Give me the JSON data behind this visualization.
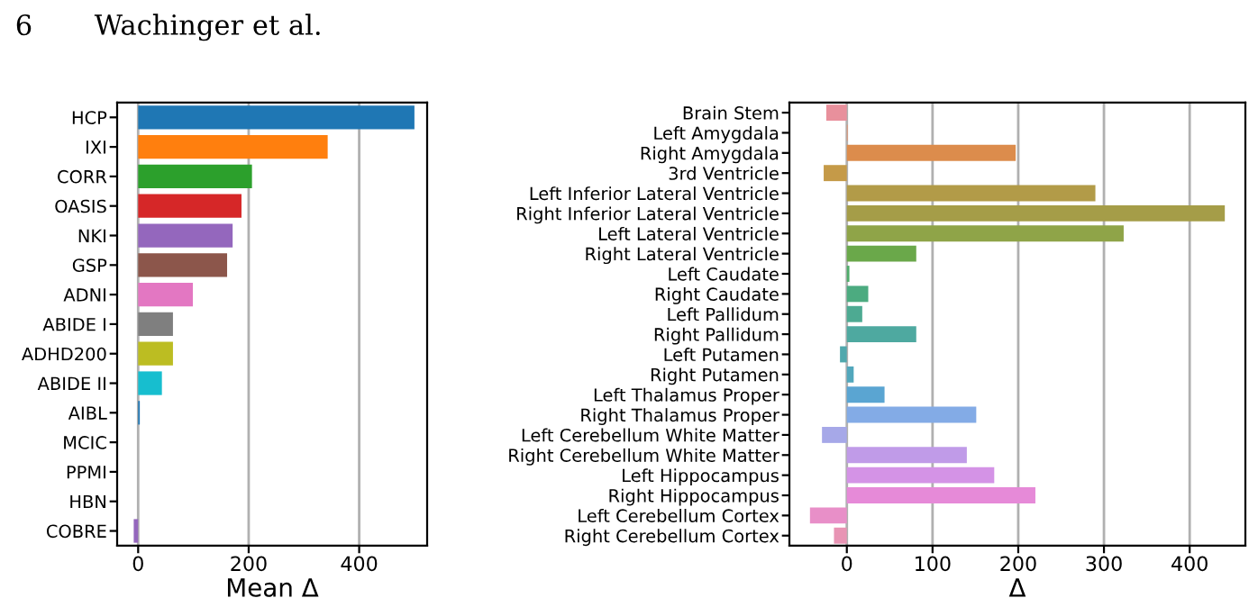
{
  "chart_data": [
    {
      "type": "bar",
      "orientation": "horizontal",
      "xlabel": "Mean Δ",
      "annotations": [
        "6",
        "Wachinger et al."
      ],
      "categories": [
        "HCP",
        "IXI",
        "CORR",
        "OASIS",
        "NKI",
        "GSP",
        "ADNI",
        "ABIDE I",
        "ADHD200",
        "ABIDE II",
        "AIBL",
        "MCIC",
        "PPMI",
        "HBN",
        "COBRE"
      ],
      "values": [
        500,
        343,
        206,
        187,
        171,
        161,
        99,
        63,
        63,
        43,
        3,
        0,
        0,
        0,
        -8
      ],
      "colors": [
        "#1f77b4",
        "#ff7f0e",
        "#2ca02c",
        "#d62728",
        "#9467bd",
        "#8c564b",
        "#e377c2",
        "#7f7f7f",
        "#bcbd22",
        "#17becf",
        "#1f77b4",
        "#ff7f0e",
        "#2ca02c",
        "#d62728",
        "#9467bd"
      ],
      "xlim": [
        -38,
        523
      ],
      "xticks": [
        0,
        200,
        400
      ],
      "grid": "x"
    },
    {
      "type": "bar",
      "orientation": "horizontal",
      "xlabel": "Δ",
      "categories": [
        "Brain Stem",
        "Left Amygdala",
        "Right Amygdala",
        "3rd Ventricle",
        "Left Inferior Lateral Ventricle",
        "Right Inferior Lateral Ventricle",
        "Left Lateral Ventricle",
        "Right Lateral Ventricle",
        "Left Caudate",
        "Right Caudate",
        "Left Pallidum",
        "Right Pallidum",
        "Left Putamen",
        "Right Putamen",
        "Left Thalamus Proper",
        "Right Thalamus Proper",
        "Left Cerebellum White Matter",
        "Right Cerebellum White Matter",
        "Left Hippocampus",
        "Right Hippocampus",
        "Left Cerebellum Cortex",
        "Right Cerebellum Cortex"
      ],
      "values": [
        -24,
        1,
        197,
        -27,
        290,
        441,
        323,
        81,
        3,
        25,
        18,
        81,
        -8,
        8,
        44,
        151,
        -29,
        140,
        172,
        220,
        -43,
        -15
      ],
      "colors": [
        "#e8909c",
        "#e39573",
        "#dc8c4c",
        "#c59a48",
        "#b29b48",
        "#a59d48",
        "#8fa448",
        "#6aa84a",
        "#4fac6a",
        "#4cab80",
        "#4daa92",
        "#4ea9a0",
        "#50a8ad",
        "#52a7bc",
        "#5aa5d2",
        "#83abe6",
        "#a6a8e8",
        "#c09be8",
        "#d493e6",
        "#e68ad8",
        "#e88fc8",
        "#e894b4"
      ],
      "xlim": [
        -67,
        465
      ],
      "xticks": [
        0,
        100,
        200,
        300,
        400
      ],
      "grid": "x"
    }
  ]
}
